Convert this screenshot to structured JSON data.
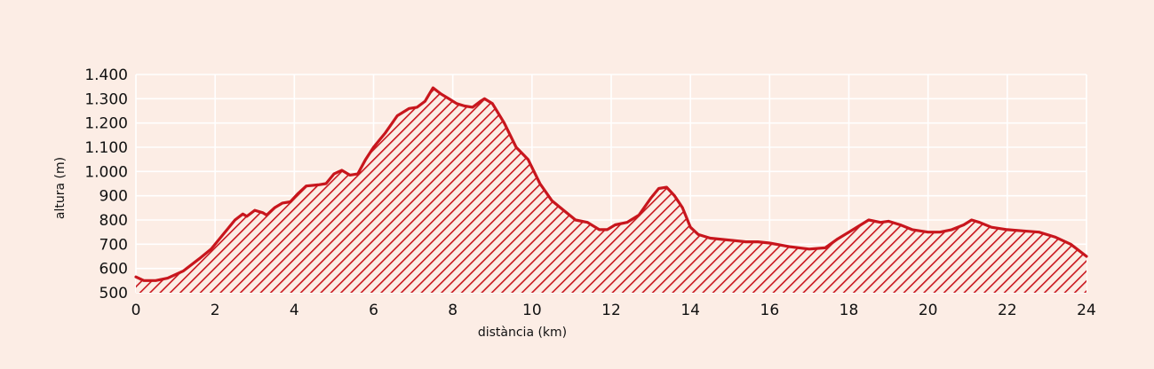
{
  "chart_data": {
    "type": "area",
    "title": "",
    "xlabel": "distància (km)",
    "ylabel": "altura (m)",
    "xlim": [
      0,
      24
    ],
    "ylim": [
      500,
      1400
    ],
    "x_ticks": [
      0,
      2,
      4,
      6,
      8,
      10,
      12,
      14,
      16,
      18,
      20,
      22,
      24
    ],
    "x_tick_labels": [
      "0",
      "2",
      "4",
      "6",
      "8",
      "10",
      "12",
      "14",
      "16",
      "18",
      "20",
      "22",
      "24"
    ],
    "y_ticks": [
      500,
      600,
      700,
      800,
      900,
      1000,
      1100,
      1200,
      1300,
      1400
    ],
    "y_tick_labels": [
      "500",
      "600",
      "700",
      "800",
      "900",
      "1.000",
      "1.100",
      "1.200",
      "1.300",
      "1.400"
    ],
    "grid": true,
    "colors": {
      "line": "#c8161d",
      "fill_hatch": "#c8161d",
      "grid": "#ffffff",
      "background": "#fcede5"
    },
    "series": [
      {
        "x": [
          0,
          0.2,
          0.5,
          0.8,
          1.2,
          1.6,
          1.9,
          2.2,
          2.5,
          2.7,
          2.8,
          3.0,
          3.2,
          3.3,
          3.5,
          3.7,
          3.9,
          4.1,
          4.3,
          4.6,
          4.8,
          5.0,
          5.2,
          5.4,
          5.6,
          5.8,
          6.0,
          6.3,
          6.6,
          6.9,
          7.1,
          7.3,
          7.5,
          7.7,
          7.9,
          8.1,
          8.3,
          8.5,
          8.7,
          8.8,
          9.0,
          9.3,
          9.6,
          9.9,
          10.2,
          10.5,
          10.8,
          11.1,
          11.4,
          11.7,
          11.9,
          12.1,
          12.4,
          12.7,
          13.0,
          13.2,
          13.4,
          13.6,
          13.8,
          14.0,
          14.2,
          14.5,
          14.8,
          15.1,
          15.4,
          15.7,
          16.0,
          16.5,
          17.0,
          17.4,
          17.7,
          18.0,
          18.3,
          18.5,
          18.8,
          19.0,
          19.3,
          19.6,
          20.0,
          20.3,
          20.6,
          20.9,
          21.1,
          21.3,
          21.6,
          22.0,
          22.4,
          22.8,
          23.2,
          23.6,
          24.0
        ],
        "y": [
          565,
          550,
          550,
          560,
          590,
          640,
          680,
          740,
          800,
          825,
          815,
          840,
          830,
          820,
          850,
          870,
          875,
          910,
          940,
          945,
          950,
          990,
          1005,
          985,
          990,
          1050,
          1100,
          1160,
          1230,
          1260,
          1265,
          1290,
          1345,
          1320,
          1300,
          1280,
          1270,
          1265,
          1290,
          1300,
          1280,
          1200,
          1100,
          1050,
          950,
          880,
          840,
          800,
          790,
          760,
          760,
          780,
          790,
          820,
          890,
          930,
          935,
          900,
          850,
          770,
          740,
          725,
          720,
          715,
          710,
          710,
          705,
          690,
          680,
          685,
          720,
          750,
          780,
          800,
          790,
          795,
          780,
          760,
          750,
          750,
          760,
          780,
          800,
          790,
          770,
          760,
          755,
          750,
          730,
          700,
          650
        ]
      }
    ]
  }
}
